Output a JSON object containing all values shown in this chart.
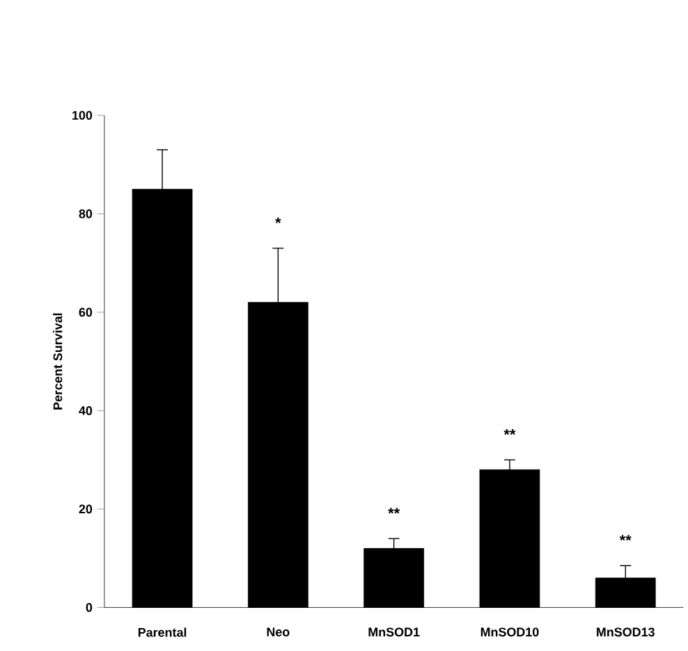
{
  "chart_data": {
    "type": "bar",
    "ylabel": "Percent Survival",
    "categories": [
      "Parental",
      "Neo",
      "MnSOD1",
      "MnSOD10",
      "MnSOD13"
    ],
    "values": [
      85,
      62,
      12,
      28,
      6
    ],
    "errors": [
      8,
      11,
      2,
      2,
      2.5
    ],
    "color": "#000000",
    "ylim": [
      0,
      100
    ],
    "yticks": [
      0,
      20,
      40,
      60,
      80,
      100
    ],
    "grid": false,
    "annotations": [
      "*",
      "**",
      "**",
      "**"
    ]
  }
}
